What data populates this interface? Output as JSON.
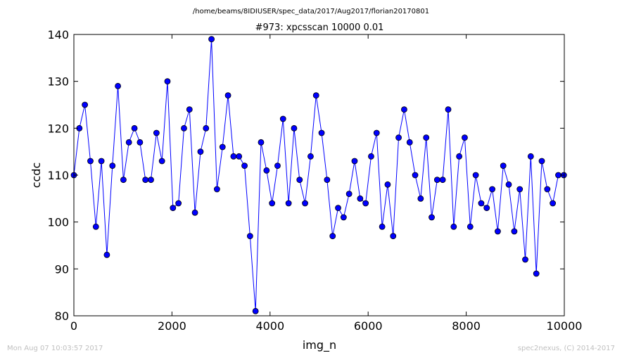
{
  "page": {
    "suptitle": "/home/beams/8IDIUSER/spec_data/2017/Aug2017/florian20170801",
    "footer_left": "Mon Aug 07 10:03:57 2017",
    "footer_right": "spec2nexus, (C) 2014-2017"
  },
  "chart_data": {
    "type": "line",
    "title": "#973: xpcsscan 10000 0.01",
    "xlabel": "img_n",
    "ylabel": "ccdc",
    "xlim": [
      0,
      10000
    ],
    "ylim": [
      80,
      140
    ],
    "xticks": [
      0,
      2000,
      4000,
      6000,
      8000,
      10000
    ],
    "yticks": [
      80,
      90,
      100,
      110,
      120,
      130,
      140
    ],
    "grid": false,
    "marker": "circle",
    "line_color": "#0000ff",
    "series": [
      {
        "x": [
          0,
          112,
          224,
          337,
          449,
          561,
          673,
          786,
          898,
          1010,
          1122,
          1235,
          1347,
          1459,
          1571,
          1684,
          1796,
          1908,
          2020,
          2133,
          2245,
          2357,
          2469,
          2582,
          2694,
          2806,
          2918,
          3031,
          3143,
          3255,
          3367,
          3480,
          3592,
          3704,
          3816,
          3929,
          4041,
          4153,
          4265,
          4378,
          4490,
          4602,
          4714,
          4827,
          4939,
          5051,
          5163,
          5276,
          5388,
          5500,
          5612,
          5724,
          5837,
          5949,
          6061,
          6173,
          6286,
          6398,
          6510,
          6622,
          6735,
          6847,
          6959,
          7071,
          7184,
          7296,
          7408,
          7520,
          7633,
          7745,
          7857,
          7969,
          8082,
          8194,
          8306,
          8418,
          8531,
          8643,
          8755,
          8867,
          8980,
          9092,
          9204,
          9316,
          9429,
          9541,
          9653,
          9765,
          9878,
          9990
        ],
        "y": [
          110,
          120,
          125,
          113,
          99,
          113,
          93,
          112,
          129,
          109,
          117,
          120,
          117,
          109,
          109,
          119,
          113,
          130,
          103,
          104,
          120,
          124,
          102,
          115,
          120,
          139,
          107,
          116,
          127,
          114,
          114,
          112,
          97,
          81,
          117,
          111,
          104,
          112,
          122,
          104,
          120,
          109,
          104,
          114,
          127,
          119,
          109,
          97,
          103,
          101,
          106,
          113,
          105,
          104,
          114,
          119,
          99,
          108,
          97,
          118,
          124,
          117,
          110,
          105,
          118,
          101,
          109,
          109,
          124,
          99,
          114,
          118,
          99,
          110,
          104,
          103,
          107,
          98,
          112,
          108,
          98,
          107,
          92,
          114,
          89,
          113,
          107,
          104,
          110,
          110
        ]
      }
    ]
  }
}
